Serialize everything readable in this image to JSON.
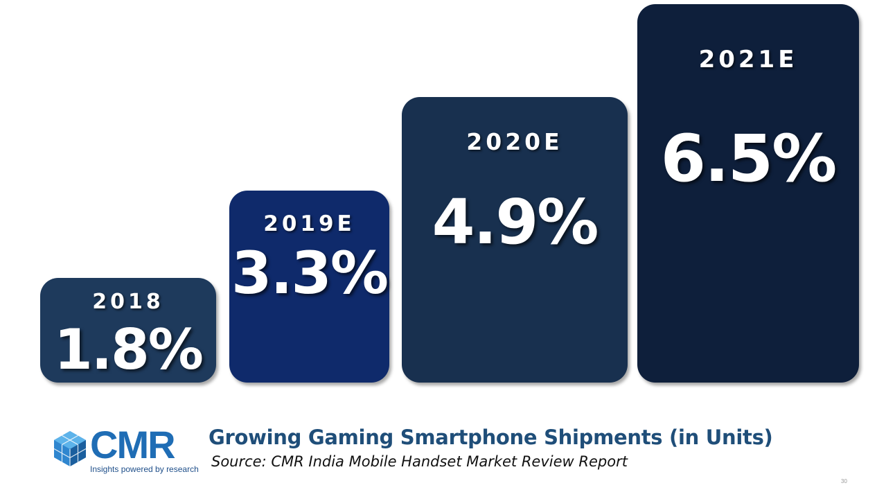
{
  "chart_data": {
    "type": "bar",
    "title": "Growing Gaming Smartphone Shipments (in Units)",
    "categories": [
      "2018",
      "2019E",
      "2020E",
      "2021E"
    ],
    "values": [
      1.8,
      3.3,
      4.9,
      6.5
    ],
    "value_labels": [
      "1.8%",
      "3.3%",
      "4.9%",
      "6.5%"
    ],
    "unit": "%",
    "colors": [
      "#1e3a5c",
      "#0f2a6b",
      "#18304f",
      "#0e1f3b"
    ],
    "xlabel": "",
    "ylabel": ""
  },
  "source": "Source:  CMR India Mobile Handset Market Review Report",
  "logo": {
    "text": "CMR",
    "tagline": "Insights powered by research",
    "color": "#1f6db5"
  },
  "page_number": "30"
}
